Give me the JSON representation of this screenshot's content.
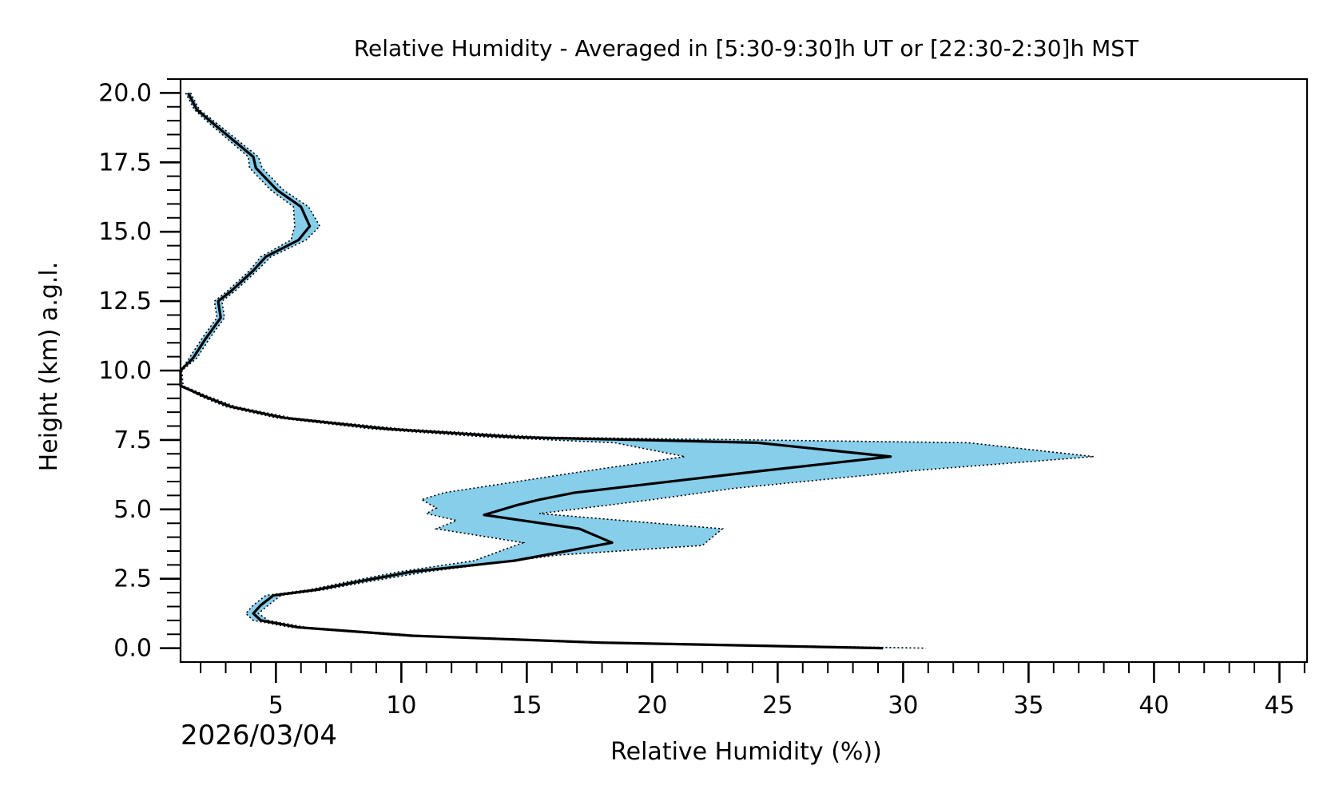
{
  "chart_data": {
    "type": "line",
    "title": "Relative Humidity - Averaged in [5:30-9:30]h UT or [22:30-2:30]h MST",
    "xlabel": "Relative Humidity (%))",
    "ylabel": "Height (km) a.g.l.",
    "date_label": "2026/03/04",
    "xlim": [
      1.2,
      46.1
    ],
    "ylim": [
      -0.5,
      20.5
    ],
    "x_major_ticks": [
      5,
      10,
      15,
      20,
      25,
      30,
      35,
      40,
      45
    ],
    "x_tick_labels": [
      "5",
      "10",
      "15",
      "20",
      "25",
      "30",
      "35",
      "40",
      "45"
    ],
    "x_minor_step": 1,
    "y_major_ticks": [
      0.0,
      2.5,
      5.0,
      7.5,
      10.0,
      12.5,
      15.0,
      17.5,
      20.0
    ],
    "y_tick_labels": [
      "0.0",
      "2.5",
      "5.0",
      "7.5",
      "10.0",
      "12.5",
      "15.0",
      "17.5",
      "20.0"
    ],
    "y_minor_step": 0.5,
    "grid": false,
    "colors": {
      "mean_line": "#000000",
      "band_fill": "#87ceeb",
      "band_edge": "#000000"
    },
    "series": [
      {
        "name": "mean",
        "height_km": [
          20.0,
          19.4,
          18.9,
          17.7,
          17.3,
          16.5,
          15.9,
          15.2,
          14.7,
          14.1,
          13.6,
          12.85,
          12.5,
          11.9,
          11.15,
          10.45,
          10.0,
          9.45,
          9.05,
          8.7,
          8.3,
          7.9,
          7.6,
          7.4,
          6.9,
          6.4,
          5.6,
          5.35,
          5.15,
          4.8,
          4.3,
          3.8,
          3.15,
          2.75,
          2.4,
          2.1,
          1.9,
          1.55,
          1.25,
          1.0,
          0.75,
          0.45,
          0.2,
          0.0
        ],
        "rh_percent": [
          1.5,
          1.85,
          2.5,
          4.1,
          4.2,
          5.05,
          6.0,
          6.35,
          5.9,
          4.6,
          4.1,
          3.2,
          2.7,
          2.8,
          2.2,
          1.7,
          1.2,
          1.2,
          2.2,
          3.2,
          5.3,
          9.4,
          14.6,
          24.2,
          29.5,
          24.5,
          16.9,
          15.5,
          14.6,
          13.3,
          17.1,
          18.4,
          14.5,
          10.4,
          8.3,
          6.6,
          4.9,
          4.4,
          4.1,
          4.4,
          5.9,
          10.4,
          17.9,
          29.2
        ]
      },
      {
        "name": "lower_bound",
        "height_km": [
          20.0,
          19.4,
          18.9,
          17.7,
          17.3,
          16.5,
          15.9,
          15.2,
          14.7,
          14.1,
          13.6,
          12.85,
          12.5,
          11.9,
          11.15,
          10.45,
          10.0,
          9.45,
          9.05,
          8.7,
          8.3,
          7.9,
          7.6,
          7.4,
          6.9,
          6.4,
          5.6,
          5.35,
          5.05,
          4.85,
          4.6,
          4.3,
          3.8,
          3.15,
          2.75,
          2.4,
          2.1,
          1.9,
          1.55,
          1.25,
          1.0,
          0.75,
          0.45,
          0.2,
          0.0
        ],
        "rh_percent": [
          1.4,
          1.75,
          2.35,
          3.9,
          3.95,
          4.8,
          5.7,
          5.75,
          5.6,
          4.4,
          3.95,
          3.05,
          2.55,
          2.65,
          2.05,
          1.55,
          1.2,
          1.2,
          2.05,
          3.0,
          5.0,
          8.8,
          13.5,
          18.5,
          21.3,
          17.5,
          11.7,
          10.8,
          11.4,
          11.0,
          12.2,
          11.4,
          14.85,
          12.9,
          9.9,
          7.9,
          6.3,
          4.6,
          4.1,
          3.8,
          4.1,
          5.6,
          10.0,
          17.3,
          29.0
        ]
      },
      {
        "name": "upper_bound",
        "height_km": [
          20.0,
          19.4,
          18.9,
          17.7,
          17.3,
          16.5,
          15.9,
          15.2,
          14.7,
          14.1,
          13.6,
          12.85,
          12.5,
          11.9,
          11.15,
          10.45,
          10.0,
          9.45,
          9.05,
          8.7,
          8.3,
          7.9,
          7.6,
          7.4,
          6.9,
          6.4,
          5.75,
          5.35,
          5.0,
          4.85,
          4.3,
          3.7,
          3.35,
          2.75,
          2.4,
          2.1,
          1.9,
          1.55,
          1.25,
          1.0,
          0.75,
          0.45,
          0.2,
          0.0
        ],
        "rh_percent": [
          1.6,
          1.95,
          2.65,
          4.3,
          4.45,
          5.3,
          6.3,
          6.75,
          6.2,
          4.8,
          4.25,
          3.35,
          2.85,
          2.95,
          2.35,
          1.85,
          1.25,
          1.3,
          2.35,
          3.4,
          5.6,
          10.0,
          15.7,
          32.6,
          37.6,
          30.5,
          23.2,
          20.0,
          16.9,
          15.5,
          22.8,
          22.0,
          16.2,
          11.0,
          8.7,
          6.9,
          5.2,
          4.7,
          4.3,
          4.7,
          6.2,
          10.8,
          18.6,
          30.9
        ]
      }
    ]
  }
}
